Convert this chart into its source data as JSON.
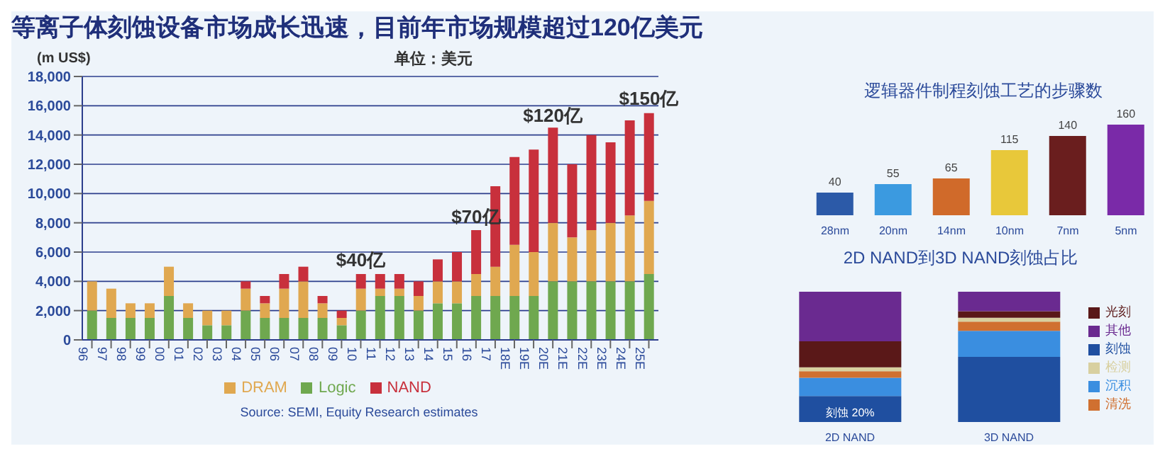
{
  "chart_data": [
    {
      "type": "bar",
      "title": "等离子体刻蚀设备市场成长迅速，目前年市场规模超过120亿美元",
      "ylabel": "(m US$)",
      "stacked": true,
      "grid": "y",
      "legend": "bottom",
      "categories": [
        "96",
        "97",
        "98",
        "99",
        "00",
        "01",
        "02",
        "03",
        "04",
        "05",
        "06",
        "07",
        "08",
        "09",
        "10",
        "11",
        "12",
        "13",
        "14",
        "15",
        "16",
        "17",
        "18E",
        "19E",
        "20E",
        "21E",
        "22E",
        "23E",
        "24E",
        "25E"
      ],
      "ylim": [
        0,
        18000
      ],
      "yticks": [
        {
          "value": 0,
          "label": "0"
        },
        {
          "value": 2000,
          "label": "2,000"
        },
        {
          "value": 4000,
          "label": "4,000"
        },
        {
          "value": 6000,
          "label": "6,000"
        },
        {
          "value": 8000,
          "label": "8,000"
        },
        {
          "value": 10000,
          "label": "10,000"
        },
        {
          "value": 12000,
          "label": "12,000"
        },
        {
          "value": 14000,
          "label": "14,000"
        },
        {
          "value": 16000,
          "label": "16,000"
        },
        {
          "value": 18000,
          "label": "18,000"
        }
      ],
      "series": [
        {
          "name": "Logic",
          "color": "#6fa84f",
          "values": [
            2000,
            1500,
            1500,
            1500,
            3000,
            1500,
            1000,
            1000,
            2000,
            1500,
            1500,
            1500,
            1500,
            1000,
            2000,
            3000,
            3000,
            2000,
            2500,
            2500,
            3000,
            3000,
            3000,
            3000,
            4000,
            4000,
            4000,
            4000,
            4000,
            4500
          ]
        },
        {
          "name": "DRAM",
          "color": "#e0a850",
          "values": [
            2000,
            2000,
            1000,
            1000,
            2000,
            1000,
            1000,
            1000,
            1500,
            1000,
            2000,
            2500,
            1000,
            500,
            1500,
            500,
            500,
            1000,
            1500,
            1500,
            1500,
            2000,
            3500,
            3000,
            4000,
            3000,
            3500,
            4000,
            4500,
            5000
          ]
        },
        {
          "name": "NAND",
          "color": "#c8303c",
          "values": [
            0,
            0,
            0,
            0,
            0,
            0,
            0,
            0,
            500,
            500,
            1000,
            1000,
            500,
            500,
            1000,
            1000,
            1000,
            1000,
            1500,
            2000,
            3000,
            5500,
            6000,
            7000,
            6500,
            5000,
            6500,
            5500,
            6500,
            6000
          ]
        }
      ],
      "annotations": [
        "单位：美元",
        "Source: SEMI, Equity Research estimates",
        {
          "text": "$40亿",
          "x": "10",
          "y": 4450
        },
        {
          "text": "$70亿",
          "x": "16",
          "y": 7400
        },
        {
          "text": "$120亿",
          "x": "20E",
          "y": 14300
        },
        {
          "text": "$150亿",
          "x": "25E",
          "y": 15500
        }
      ]
    },
    {
      "type": "bar",
      "title": "逻辑器件制程刻蚀工艺的步骤数",
      "categories": [
        "28nm",
        "20nm",
        "14nm",
        "10nm",
        "7nm",
        "5nm"
      ],
      "values": [
        40,
        55,
        65,
        115,
        140,
        160
      ],
      "colors": [
        "#2c5aa8",
        "#3b9ae0",
        "#d06a2a",
        "#e8c83a",
        "#6a1e1e",
        "#7a2aa8"
      ],
      "data_labels": true,
      "tick_labels": "x"
    },
    {
      "type": "bar",
      "title": "2D NAND到3D NAND刻蚀占比",
      "ylim": [
        0,
        100
      ],
      "tick_labels": "x",
      "stacked": true,
      "legend": "right",
      "categories": [
        "2D NAND",
        "3D NAND"
      ],
      "series": [
        {
          "name": "刻蚀",
          "color": "#1f4fa0",
          "values": [
            20,
            50
          ],
          "value_labels": [
            "刻蚀 20%",
            null
          ]
        },
        {
          "name": "沉积",
          "color": "#3a8ee0",
          "values": [
            14,
            20
          ]
        },
        {
          "name": "清洗",
          "color": "#d07030",
          "values": [
            5,
            7
          ]
        },
        {
          "name": "检测",
          "color": "#d8d0a0",
          "values": [
            3,
            3
          ]
        },
        {
          "name": "光刻",
          "color": "#5a1818",
          "values": [
            20,
            5
          ]
        },
        {
          "name": "其他",
          "color": "#6a2a90",
          "values": [
            38,
            15
          ]
        }
      ]
    }
  ]
}
